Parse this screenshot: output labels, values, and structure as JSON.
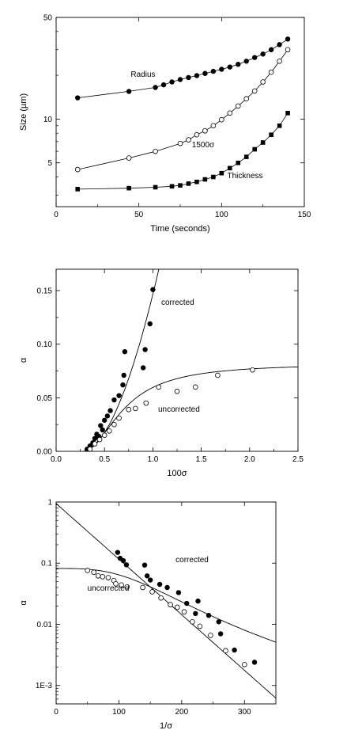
{
  "chart_data": [
    {
      "type": "scatter",
      "xlabel": "Time (seconds)",
      "ylabel": "Size (µm)",
      "xlim": [
        0,
        150
      ],
      "ylim": [
        2.5,
        50
      ],
      "yscale": "log",
      "xticks": [
        "0",
        "50",
        "100",
        "150"
      ],
      "yticks": [
        {
          "value": 5,
          "label": "5"
        },
        {
          "value": 10,
          "label": "10"
        },
        {
          "value": 50,
          "label": "50"
        }
      ],
      "series": [
        {
          "name": "Radius",
          "marker": "filled-circle",
          "x": [
            13,
            44,
            60,
            65,
            70,
            75,
            80,
            85,
            90,
            95,
            100,
            105,
            110,
            115,
            120,
            125,
            130,
            135,
            140
          ],
          "y": [
            14.0,
            15.5,
            16.5,
            17.2,
            18.0,
            18.7,
            19.3,
            19.9,
            20.6,
            21.3,
            22.0,
            22.8,
            23.8,
            25.0,
            26.5,
            28.0,
            30.0,
            32.5,
            35.5
          ]
        },
        {
          "name": "1500σ",
          "marker": "open-circle",
          "x": [
            13,
            44,
            60,
            75,
            80,
            85,
            90,
            95,
            100,
            105,
            110,
            115,
            120,
            125,
            130,
            135,
            140
          ],
          "y": [
            4.5,
            5.4,
            6.0,
            6.8,
            7.2,
            7.8,
            8.3,
            9.0,
            9.9,
            11.0,
            12.3,
            13.8,
            15.6,
            18.0,
            21.0,
            25.0,
            30.0
          ]
        },
        {
          "name": "Thickness",
          "marker": "filled-square",
          "x": [
            13,
            44,
            60,
            70,
            75,
            80,
            85,
            90,
            95,
            100,
            105,
            110,
            115,
            120,
            125,
            130,
            135,
            140
          ],
          "y": [
            3.3,
            3.35,
            3.4,
            3.45,
            3.5,
            3.6,
            3.7,
            3.85,
            4.0,
            4.25,
            4.6,
            5.0,
            5.5,
            6.2,
            6.9,
            7.8,
            9.0,
            11.0
          ]
        }
      ],
      "annotations": [
        "Radius",
        "1500σ",
        "Thickness"
      ]
    },
    {
      "type": "scatter",
      "xlabel": "100σ",
      "ylabel": "α",
      "xlim": [
        0,
        2.5
      ],
      "ylim": [
        0,
        0.17
      ],
      "xticks": [
        "0.0",
        "0.5",
        "1.0",
        "1.5",
        "2.0",
        "2.5"
      ],
      "yticks": [
        "0.00",
        "0.05",
        "0.10",
        "0.15"
      ],
      "series": [
        {
          "name": "corrected",
          "marker": "filled-circle",
          "x": [
            0.32,
            0.35,
            0.38,
            0.4,
            0.42,
            0.44,
            0.46,
            0.48,
            0.5,
            0.53,
            0.56,
            0.6,
            0.65,
            0.69,
            0.7,
            0.71,
            0.9,
            0.92,
            0.97,
            1.0
          ],
          "y": [
            0.002,
            0.005,
            0.008,
            0.012,
            0.016,
            0.014,
            0.024,
            0.02,
            0.029,
            0.033,
            0.038,
            0.048,
            0.052,
            0.062,
            0.071,
            0.093,
            0.078,
            0.095,
            0.119,
            0.151
          ]
        },
        {
          "name": "uncorrected",
          "marker": "open-circle",
          "x": [
            0.35,
            0.4,
            0.45,
            0.5,
            0.55,
            0.6,
            0.65,
            0.75,
            0.82,
            0.93,
            1.06,
            1.25,
            1.44,
            1.67,
            2.03
          ],
          "y": [
            0.002,
            0.007,
            0.011,
            0.015,
            0.019,
            0.025,
            0.031,
            0.039,
            0.04,
            0.045,
            0.06,
            0.056,
            0.06,
            0.071,
            0.076
          ]
        }
      ],
      "annotations": [
        "corrected",
        "uncorrected"
      ]
    },
    {
      "type": "scatter",
      "xlabel": "1/σ",
      "ylabel": "α",
      "xlim": [
        0,
        350
      ],
      "ylim": [
        0.0005,
        1
      ],
      "yscale": "log",
      "xticks": [
        "0",
        "100",
        "200",
        "300"
      ],
      "yticks": [
        {
          "value": 1,
          "label": "1"
        },
        {
          "value": 0.1,
          "label": "0.1"
        },
        {
          "value": 0.01,
          "label": "0.01"
        },
        {
          "value": 0.001,
          "label": "1E-3"
        }
      ],
      "series": [
        {
          "name": "corrected",
          "marker": "filled-circle",
          "x": [
            98,
            102,
            107,
            112,
            141,
            145,
            150,
            165,
            177,
            195,
            208,
            222,
            226,
            243,
            259,
            262,
            284,
            316
          ],
          "y": [
            0.15,
            0.12,
            0.11,
            0.094,
            0.093,
            0.062,
            0.053,
            0.045,
            0.04,
            0.033,
            0.022,
            0.015,
            0.024,
            0.014,
            0.011,
            0.007,
            0.0038,
            0.0024
          ]
        },
        {
          "name": "uncorrected",
          "marker": "open-circle",
          "x": [
            50,
            60,
            67,
            74,
            83,
            92,
            95,
            104,
            113,
            138,
            153,
            167,
            182,
            193,
            204,
            217,
            229,
            246,
            270,
            300
          ],
          "y": [
            0.076,
            0.071,
            0.062,
            0.06,
            0.058,
            0.052,
            0.046,
            0.044,
            0.041,
            0.04,
            0.034,
            0.027,
            0.021,
            0.019,
            0.016,
            0.011,
            0.0093,
            0.0066,
            0.0037,
            0.0022
          ]
        }
      ],
      "annotations": [
        "corrected",
        "uncorrected"
      ]
    }
  ]
}
